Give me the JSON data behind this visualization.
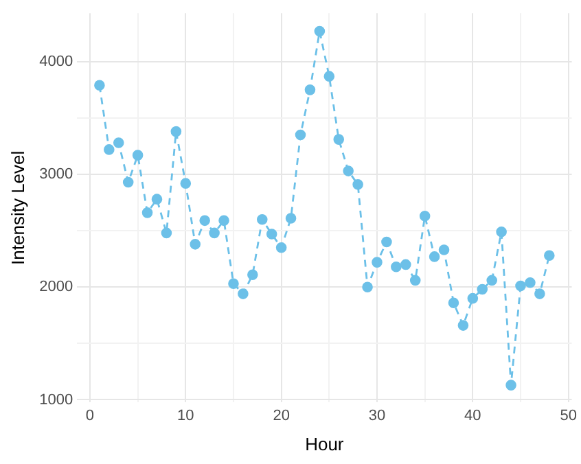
{
  "chart_data": {
    "type": "line",
    "xlabel": "Hour",
    "ylabel": "Intensity Level",
    "x": [
      1,
      2,
      3,
      4,
      5,
      6,
      7,
      8,
      9,
      10,
      11,
      12,
      13,
      14,
      15,
      16,
      17,
      18,
      19,
      20,
      21,
      22,
      23,
      24,
      25,
      26,
      27,
      28,
      29,
      30,
      31,
      32,
      33,
      34,
      35,
      36,
      37,
      38,
      39,
      40,
      41,
      42,
      43,
      44,
      45,
      46,
      47,
      48
    ],
    "series": [
      {
        "color": "#6cc0e8",
        "values": [
          3790,
          3220,
          3280,
          2930,
          3170,
          2660,
          2780,
          2480,
          3380,
          2920,
          2380,
          2590,
          2480,
          2590,
          2030,
          1940,
          2110,
          2600,
          2470,
          2350,
          2610,
          3350,
          3750,
          4270,
          3870,
          3310,
          3030,
          2910,
          2000,
          2220,
          2400,
          2180,
          2200,
          2060,
          2630,
          2270,
          2330,
          1860,
          1660,
          1900,
          1980,
          2060,
          2490,
          1130,
          2010,
          2040,
          1940,
          2280
        ]
      }
    ],
    "xlim": [
      -1.35,
      50.35
    ],
    "ylim": [
      976,
      4430
    ],
    "xticks": [
      0,
      {
        "value": 5,
        "label": null
      },
      10,
      {
        "value": 15,
        "label": null
      },
      20,
      {
        "value": 25,
        "label": null
      },
      30,
      {
        "value": 35,
        "label": null
      },
      40,
      {
        "value": 45,
        "label": null
      },
      50
    ],
    "yticks": [
      1000,
      {
        "value": 1500,
        "label": null
      },
      2000,
      {
        "value": 2500,
        "label": null
      },
      3000,
      {
        "value": 3500,
        "label": null
      },
      4000
    ],
    "grid": true,
    "legend": false,
    "marker": "circle",
    "line_style": "dashed"
  }
}
